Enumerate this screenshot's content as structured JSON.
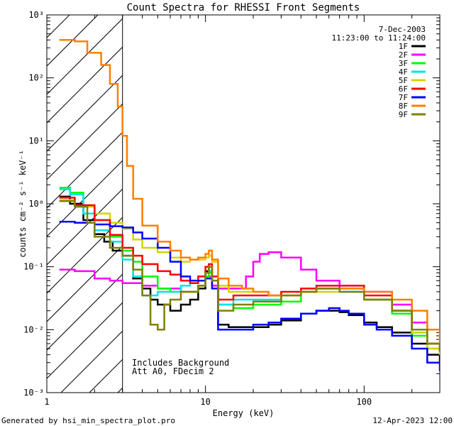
{
  "chart_data": {
    "type": "line",
    "title": "Count Spectra for RHESSI Front Segments",
    "xlabel": "Energy (keV)",
    "ylabel": "counts cm⁻² s⁻¹ keV⁻¹",
    "xscale": "log",
    "yscale": "log",
    "xlim": [
      1,
      300
    ],
    "ylim": [
      0.001,
      1000
    ],
    "x_ticks": [
      {
        "value": 1,
        "label": "1"
      },
      {
        "value": 10,
        "label": "10"
      },
      {
        "value": 100,
        "label": "100"
      }
    ],
    "y_ticks": [
      {
        "value": 0.001,
        "label": "10⁻³"
      },
      {
        "value": 0.01,
        "label": "10⁻²"
      },
      {
        "value": 0.1,
        "label": "10⁻¹"
      },
      {
        "value": 1,
        "label": "10⁰"
      },
      {
        "value": 10,
        "label": "10¹"
      },
      {
        "value": 100,
        "label": "10²"
      },
      {
        "value": 1000,
        "label": "10³"
      }
    ],
    "date": "7-Dec-2003",
    "time_range": "11:23:00 to 11:24:00",
    "hatched_region_upper_keV": 3,
    "annotations": [
      "Includes Background",
      "Att A0, FDecim 2"
    ],
    "footer_left": "Generated by hsi_min_spectra_plot.pro",
    "footer_right": "12-Apr-2023 12:00",
    "legend_position": "top-right",
    "series": [
      {
        "name": "1F",
        "color": "#000000",
        "points": [
          [
            1.2,
            1.3
          ],
          [
            1.4,
            1.0
          ],
          [
            1.7,
            0.55
          ],
          [
            2.0,
            0.33
          ],
          [
            2.3,
            0.25
          ],
          [
            2.6,
            0.18
          ],
          [
            3.0,
            0.15
          ],
          [
            3.5,
            0.065
          ],
          [
            4.0,
            0.045
          ],
          [
            4.5,
            0.03
          ],
          [
            5.0,
            0.025
          ],
          [
            6.0,
            0.02
          ],
          [
            7.0,
            0.025
          ],
          [
            8.0,
            0.03
          ],
          [
            9.0,
            0.045
          ],
          [
            10.0,
            0.085
          ],
          [
            10.5,
            0.1
          ],
          [
            11.0,
            0.06
          ],
          [
            12.0,
            0.012
          ],
          [
            14.0,
            0.011
          ],
          [
            17.0,
            0.011
          ],
          [
            20.0,
            0.011
          ],
          [
            25.0,
            0.012
          ],
          [
            30.0,
            0.014
          ],
          [
            40.0,
            0.018
          ],
          [
            50.0,
            0.02
          ],
          [
            60.0,
            0.02
          ],
          [
            70.0,
            0.019
          ],
          [
            80.0,
            0.017
          ],
          [
            100.0,
            0.013
          ],
          [
            120.0,
            0.011
          ],
          [
            150.0,
            0.009
          ],
          [
            200.0,
            0.006
          ],
          [
            250.0,
            0.004
          ],
          [
            300.0,
            0.0028
          ]
        ]
      },
      {
        "name": "2F",
        "color": "#ff00ff",
        "points": [
          [
            1.2,
            0.09
          ],
          [
            1.5,
            0.085
          ],
          [
            2.0,
            0.065
          ],
          [
            2.5,
            0.06
          ],
          [
            3.0,
            0.055
          ],
          [
            4.0,
            0.05
          ],
          [
            5.0,
            0.045
          ],
          [
            7.0,
            0.04
          ],
          [
            8.0,
            0.04
          ],
          [
            9.0,
            0.05
          ],
          [
            10.0,
            0.07
          ],
          [
            11.0,
            0.05
          ],
          [
            12.0,
            0.045
          ],
          [
            15.0,
            0.045
          ],
          [
            18.0,
            0.07
          ],
          [
            20.0,
            0.12
          ],
          [
            22.0,
            0.16
          ],
          [
            25.0,
            0.17
          ],
          [
            30.0,
            0.14
          ],
          [
            40.0,
            0.09
          ],
          [
            50.0,
            0.06
          ],
          [
            70.0,
            0.045
          ],
          [
            100.0,
            0.04
          ],
          [
            150.0,
            0.025
          ],
          [
            200.0,
            0.013
          ],
          [
            250.0,
            0.01
          ],
          [
            300.0,
            0.009
          ]
        ]
      },
      {
        "name": "3F",
        "color": "#00ff00",
        "points": [
          [
            1.2,
            1.8
          ],
          [
            1.4,
            1.5
          ],
          [
            1.7,
            0.9
          ],
          [
            2.0,
            0.55
          ],
          [
            2.5,
            0.3
          ],
          [
            3.0,
            0.18
          ],
          [
            3.5,
            0.12
          ],
          [
            4.0,
            0.07
          ],
          [
            5.0,
            0.045
          ],
          [
            6.0,
            0.04
          ],
          [
            7.0,
            0.04
          ],
          [
            8.0,
            0.04
          ],
          [
            9.0,
            0.05
          ],
          [
            10.0,
            0.07
          ],
          [
            10.5,
            0.08
          ],
          [
            11.0,
            0.06
          ],
          [
            12.0,
            0.025
          ],
          [
            15.0,
            0.022
          ],
          [
            20.0,
            0.025
          ],
          [
            30.0,
            0.028
          ],
          [
            40.0,
            0.04
          ],
          [
            50.0,
            0.045
          ],
          [
            70.0,
            0.045
          ],
          [
            100.0,
            0.03
          ],
          [
            150.0,
            0.018
          ],
          [
            200.0,
            0.008
          ],
          [
            250.0,
            0.005
          ],
          [
            300.0,
            0.004
          ]
        ]
      },
      {
        "name": "4F",
        "color": "#00e5e5",
        "points": [
          [
            1.2,
            1.7
          ],
          [
            1.4,
            1.4
          ],
          [
            1.7,
            0.7
          ],
          [
            2.0,
            0.38
          ],
          [
            2.5,
            0.25
          ],
          [
            3.0,
            0.13
          ],
          [
            3.5,
            0.07
          ],
          [
            4.0,
            0.035
          ],
          [
            5.0,
            0.04
          ],
          [
            6.0,
            0.04
          ],
          [
            7.0,
            0.05
          ],
          [
            8.0,
            0.055
          ],
          [
            9.0,
            0.06
          ],
          [
            10.0,
            0.08
          ],
          [
            10.5,
            0.085
          ],
          [
            11.0,
            0.06
          ],
          [
            12.0,
            0.025
          ],
          [
            15.0,
            0.03
          ],
          [
            20.0,
            0.03
          ],
          [
            30.0,
            0.035
          ],
          [
            40.0,
            0.04
          ],
          [
            50.0,
            0.045
          ],
          [
            70.0,
            0.04
          ],
          [
            100.0,
            0.03
          ],
          [
            150.0,
            0.02
          ],
          [
            200.0,
            0.009
          ],
          [
            250.0,
            0.006
          ],
          [
            300.0,
            0.004
          ]
        ]
      },
      {
        "name": "5F",
        "color": "#d4d400",
        "points": [
          [
            1.2,
            1.15
          ],
          [
            1.5,
            0.9
          ],
          [
            2.0,
            0.7
          ],
          [
            2.5,
            0.5
          ],
          [
            3.0,
            0.4
          ],
          [
            3.5,
            0.27
          ],
          [
            4.0,
            0.2
          ],
          [
            5.0,
            0.17
          ],
          [
            6.0,
            0.14
          ],
          [
            7.0,
            0.12
          ],
          [
            8.0,
            0.13
          ],
          [
            9.0,
            0.13
          ],
          [
            10.0,
            0.14
          ],
          [
            10.5,
            0.15
          ],
          [
            11.0,
            0.12
          ],
          [
            12.0,
            0.05
          ],
          [
            14.0,
            0.04
          ],
          [
            17.0,
            0.04
          ],
          [
            20.0,
            0.04
          ],
          [
            25.0,
            0.035
          ],
          [
            30.0,
            0.035
          ],
          [
            40.0,
            0.04
          ],
          [
            50.0,
            0.04
          ],
          [
            70.0,
            0.045
          ],
          [
            100.0,
            0.03
          ],
          [
            150.0,
            0.02
          ],
          [
            200.0,
            0.009
          ],
          [
            250.0,
            0.005
          ],
          [
            300.0,
            0.004
          ]
        ]
      },
      {
        "name": "6F",
        "color": "#ff0000",
        "points": [
          [
            1.2,
            1.25
          ],
          [
            1.5,
            0.95
          ],
          [
            2.0,
            0.55
          ],
          [
            2.5,
            0.32
          ],
          [
            3.0,
            0.2
          ],
          [
            3.5,
            0.15
          ],
          [
            4.0,
            0.11
          ],
          [
            5.0,
            0.085
          ],
          [
            6.0,
            0.075
          ],
          [
            7.0,
            0.06
          ],
          [
            8.0,
            0.055
          ],
          [
            9.0,
            0.07
          ],
          [
            10.0,
            0.1
          ],
          [
            10.5,
            0.11
          ],
          [
            11.0,
            0.07
          ],
          [
            12.0,
            0.03
          ],
          [
            15.0,
            0.035
          ],
          [
            20.0,
            0.035
          ],
          [
            30.0,
            0.04
          ],
          [
            40.0,
            0.045
          ],
          [
            50.0,
            0.05
          ],
          [
            70.0,
            0.05
          ],
          [
            100.0,
            0.035
          ],
          [
            150.0,
            0.02
          ],
          [
            200.0,
            0.01
          ],
          [
            250.0,
            0.006
          ],
          [
            300.0,
            0.0045
          ]
        ]
      },
      {
        "name": "7F",
        "color": "#0000ff",
        "points": [
          [
            1.2,
            0.52
          ],
          [
            1.5,
            0.5
          ],
          [
            2.0,
            0.47
          ],
          [
            2.5,
            0.44
          ],
          [
            3.0,
            0.42
          ],
          [
            3.5,
            0.35
          ],
          [
            4.0,
            0.28
          ],
          [
            5.0,
            0.2
          ],
          [
            6.0,
            0.12
          ],
          [
            7.0,
            0.07
          ],
          [
            8.0,
            0.06
          ],
          [
            9.0,
            0.06
          ],
          [
            10.0,
            0.065
          ],
          [
            11.0,
            0.045
          ],
          [
            12.0,
            0.01
          ],
          [
            14.0,
            0.01
          ],
          [
            17.0,
            0.01
          ],
          [
            20.0,
            0.012
          ],
          [
            25.0,
            0.013
          ],
          [
            30.0,
            0.015
          ],
          [
            40.0,
            0.018
          ],
          [
            50.0,
            0.02
          ],
          [
            60.0,
            0.022
          ],
          [
            70.0,
            0.02
          ],
          [
            80.0,
            0.018
          ],
          [
            100.0,
            0.012
          ],
          [
            120.0,
            0.01
          ],
          [
            150.0,
            0.008
          ],
          [
            200.0,
            0.005
          ],
          [
            250.0,
            0.003
          ],
          [
            300.0,
            0.0022
          ]
        ]
      },
      {
        "name": "8F",
        "color": "#ff7f00",
        "points": [
          [
            1.2,
            400
          ],
          [
            1.5,
            380
          ],
          [
            1.8,
            250
          ],
          [
            2.2,
            160
          ],
          [
            2.5,
            80
          ],
          [
            2.8,
            35
          ],
          [
            3.0,
            12
          ],
          [
            3.2,
            4.0
          ],
          [
            3.5,
            1.2
          ],
          [
            4.0,
            0.45
          ],
          [
            5.0,
            0.25
          ],
          [
            6.0,
            0.18
          ],
          [
            7.0,
            0.14
          ],
          [
            8.0,
            0.13
          ],
          [
            9.0,
            0.14
          ],
          [
            10.0,
            0.16
          ],
          [
            10.5,
            0.18
          ],
          [
            11.0,
            0.13
          ],
          [
            12.0,
            0.065
          ],
          [
            14.0,
            0.05
          ],
          [
            17.0,
            0.045
          ],
          [
            20.0,
            0.04
          ],
          [
            25.0,
            0.035
          ],
          [
            30.0,
            0.035
          ],
          [
            40.0,
            0.04
          ],
          [
            50.0,
            0.045
          ],
          [
            70.0,
            0.045
          ],
          [
            100.0,
            0.04
          ],
          [
            150.0,
            0.03
          ],
          [
            200.0,
            0.02
          ],
          [
            250.0,
            0.01
          ],
          [
            300.0,
            0.005
          ]
        ]
      },
      {
        "name": "9F",
        "color": "#808000",
        "points": [
          [
            1.2,
            1.1
          ],
          [
            1.5,
            0.9
          ],
          [
            1.8,
            0.5
          ],
          [
            2.0,
            0.3
          ],
          [
            2.5,
            0.2
          ],
          [
            3.0,
            0.15
          ],
          [
            3.5,
            0.09
          ],
          [
            4.0,
            0.035
          ],
          [
            4.5,
            0.012
          ],
          [
            5.0,
            0.01
          ],
          [
            5.5,
            0.025
          ],
          [
            6.0,
            0.03
          ],
          [
            7.0,
            0.04
          ],
          [
            8.0,
            0.04
          ],
          [
            9.0,
            0.05
          ],
          [
            10.0,
            0.08
          ],
          [
            10.5,
            0.1
          ],
          [
            11.0,
            0.06
          ],
          [
            12.0,
            0.02
          ],
          [
            15.0,
            0.025
          ],
          [
            20.0,
            0.028
          ],
          [
            30.0,
            0.035
          ],
          [
            40.0,
            0.04
          ],
          [
            50.0,
            0.045
          ],
          [
            70.0,
            0.04
          ],
          [
            100.0,
            0.03
          ],
          [
            150.0,
            0.02
          ],
          [
            200.0,
            0.01
          ],
          [
            250.0,
            0.006
          ],
          [
            300.0,
            0.0045
          ]
        ]
      }
    ]
  }
}
